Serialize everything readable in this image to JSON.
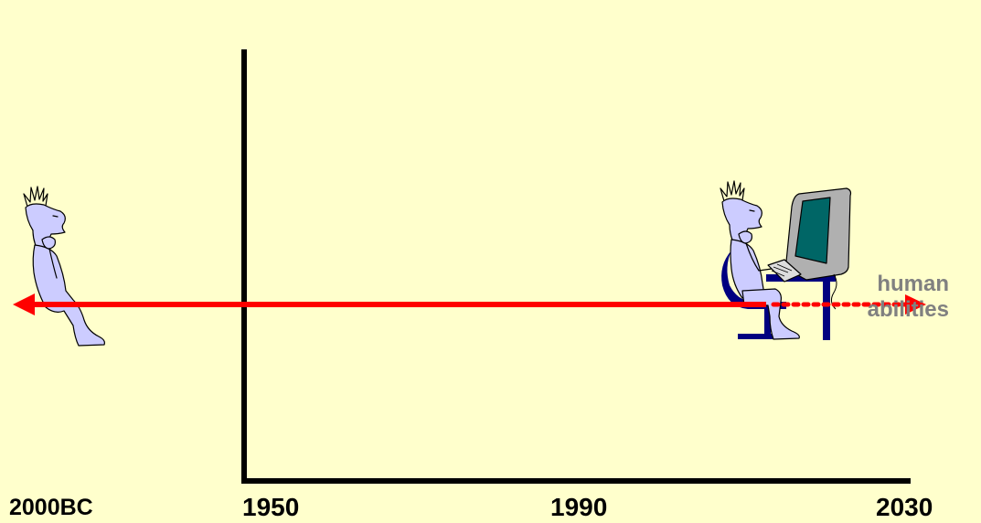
{
  "axis": {
    "labels": [
      "2000BC",
      "1950",
      "1990",
      "2030"
    ]
  },
  "arrow_label": {
    "line1": "human",
    "line2": "abilities"
  },
  "colors": {
    "background": "#FFFFCC",
    "axis": "#000000",
    "arrow": "#FF0000",
    "label_gray": "#808080",
    "figure_fill": "#CCCCFF",
    "furniture": "#000080",
    "monitor_screen": "#006666",
    "monitor_body": "#B0B0B0"
  },
  "icons": [
    "standing-person-icon",
    "seated-person-icon",
    "computer-icon"
  ]
}
